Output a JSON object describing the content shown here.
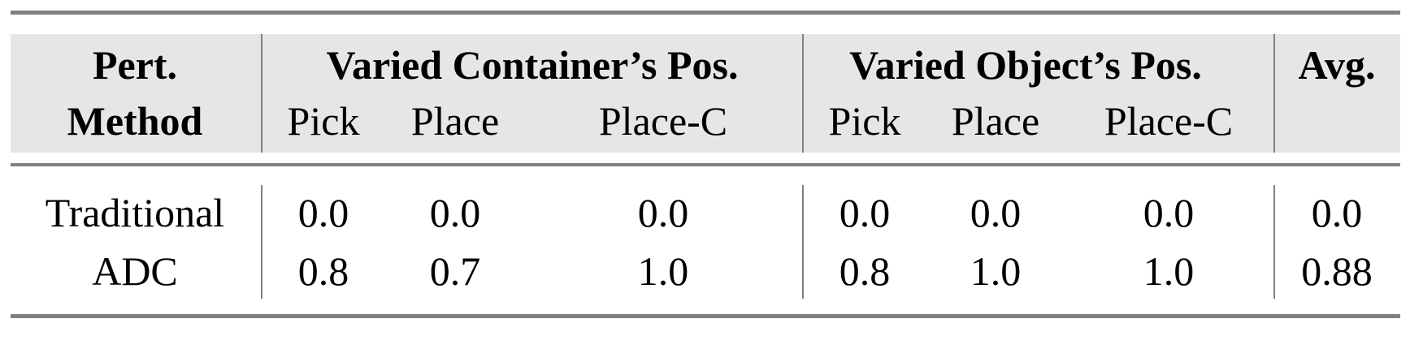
{
  "table": {
    "header": {
      "method_line1": "Pert.",
      "method_line2": "Method",
      "group1": "Varied Container’s Pos.",
      "group2": "Varied Object’s Pos.",
      "avg": "Avg.",
      "sub1": [
        "Pick",
        "Place",
        "Place-C"
      ],
      "sub2": [
        "Pick",
        "Place",
        "Place-C"
      ]
    },
    "rows": [
      {
        "method": "Traditional",
        "values": [
          "0.0",
          "0.0",
          "0.0",
          "0.0",
          "0.0",
          "0.0",
          "0.0"
        ]
      },
      {
        "method": "ADC",
        "values": [
          "0.8",
          "0.7",
          "1.0",
          "0.8",
          "1.0",
          "1.0",
          "0.88"
        ]
      }
    ]
  }
}
